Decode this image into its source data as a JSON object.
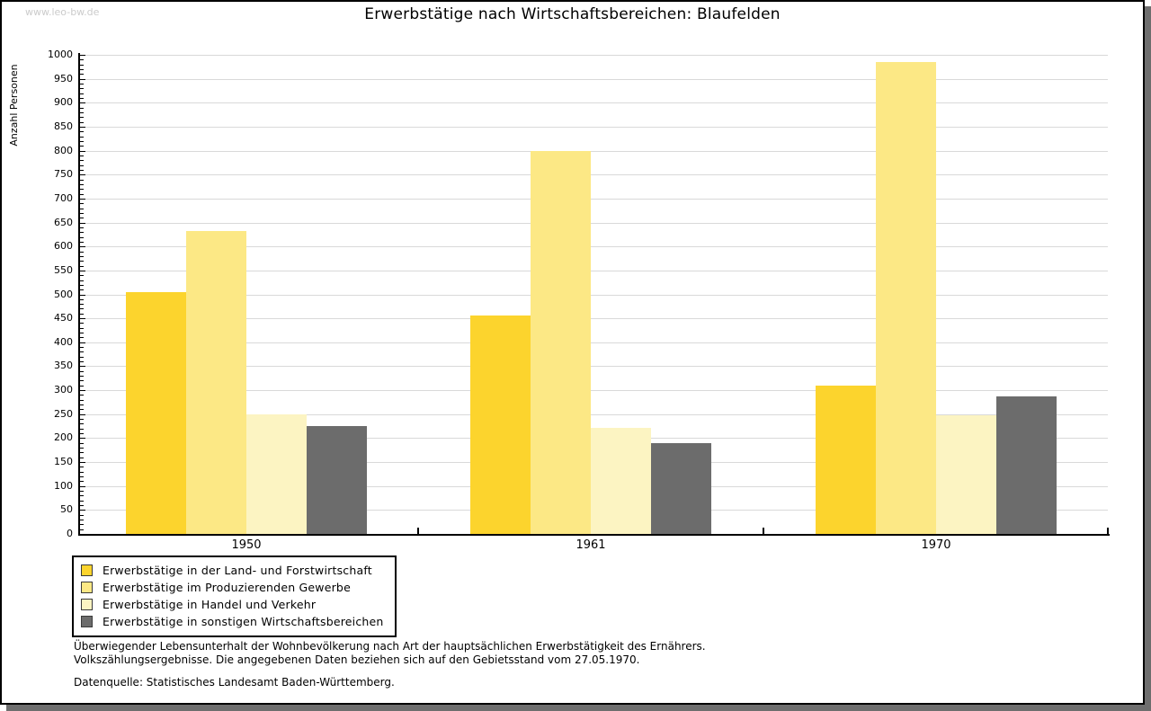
{
  "watermark": "www.leo-bw.de",
  "title": "Erwerbstätige nach Wirtschaftsbereichen: Blaufelden",
  "chart_data": {
    "type": "bar",
    "title": "Erwerbstätige nach Wirtschaftsbereichen: Blaufelden",
    "xlabel": "",
    "ylabel": "Anzahl Personen",
    "categories": [
      "1950",
      "1961",
      "1970"
    ],
    "series": [
      {
        "name": "Erwerbstätige in der Land- und Forstwirtschaft",
        "color": "#FCD42D",
        "values": [
          505,
          455,
          310
        ]
      },
      {
        "name": "Erwerbstätige im Produzierenden Gewerbe",
        "color": "#FCE885",
        "values": [
          632,
          800,
          985
        ]
      },
      {
        "name": "Erwerbstätige in Handel und Verkehr",
        "color": "#FCF4C2",
        "values": [
          250,
          222,
          248
        ]
      },
      {
        "name": "Erwerbstätige in sonstigen Wirtschaftsbereichen",
        "color": "#6C6C6C",
        "values": [
          225,
          190,
          287
        ]
      }
    ],
    "ylim": [
      0,
      1000
    ],
    "ytick_step": 50,
    "minor_tick_step": 10,
    "grid": true,
    "legend_position": "bottom-left"
  },
  "footnotes": {
    "line1": "Überwiegender Lebensunterhalt der Wohnbevölkerung nach Art der hauptsächlichen Erwerbstätigkeit des Ernährers.",
    "line2": "Volkszählungsergebnisse. Die angegebenen Daten beziehen sich auf den Gebietsstand vom 27.05.1970.",
    "source": "Datenquelle: Statistisches Landesamt Baden-Württemberg."
  }
}
